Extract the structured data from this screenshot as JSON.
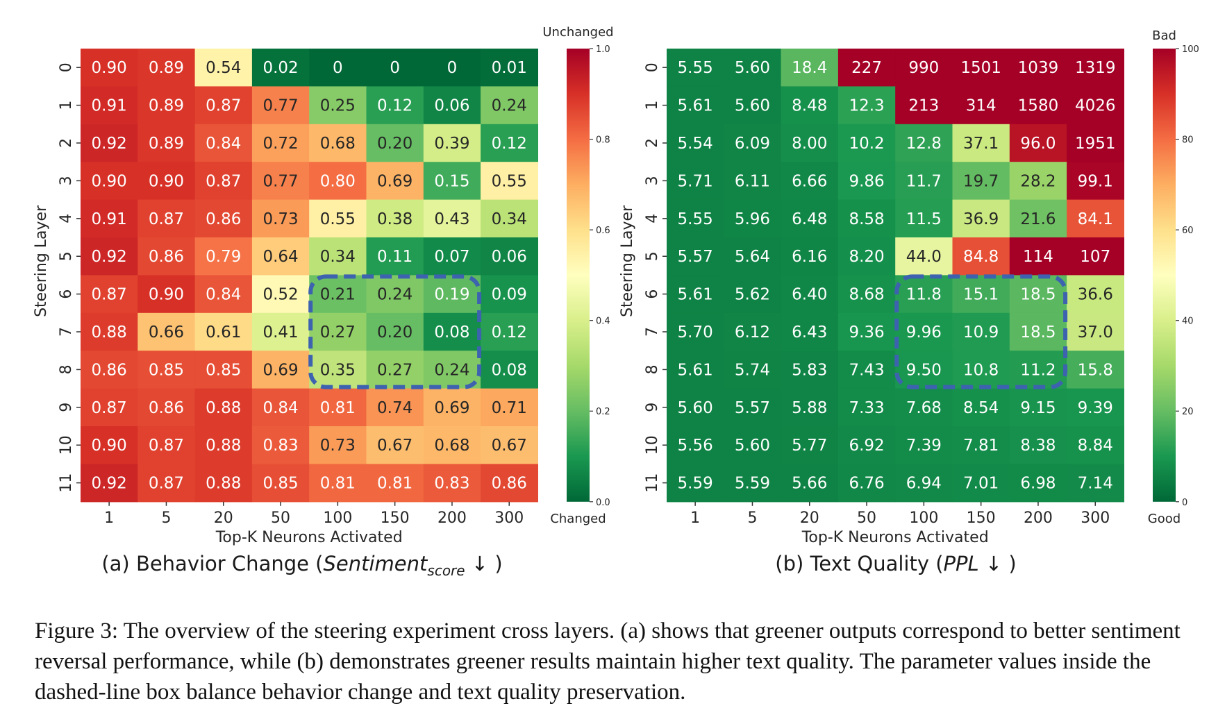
{
  "chart_data": [
    {
      "type": "heatmap",
      "panel_label": "(a) Behavior Change (",
      "metric_main": "Sentiment",
      "metric_sub": "score",
      "arrow": "↓",
      "close_paren": " )",
      "xlabel": "Top-K Neurons Activated",
      "ylabel": "Steering Layer",
      "x_categories": [
        "1",
        "5",
        "20",
        "50",
        "100",
        "150",
        "200",
        "300"
      ],
      "y_categories": [
        "0",
        "1",
        "2",
        "3",
        "4",
        "5",
        "6",
        "7",
        "8",
        "9",
        "10",
        "11"
      ],
      "values": [
        [
          "0.90",
          "0.89",
          "0.54",
          "0.02",
          "0",
          "0",
          "0",
          "0.01"
        ],
        [
          "0.91",
          "0.89",
          "0.87",
          "0.77",
          "0.25",
          "0.12",
          "0.06",
          "0.24"
        ],
        [
          "0.92",
          "0.89",
          "0.84",
          "0.72",
          "0.68",
          "0.20",
          "0.39",
          "0.12"
        ],
        [
          "0.90",
          "0.90",
          "0.87",
          "0.77",
          "0.80",
          "0.69",
          "0.15",
          "0.55"
        ],
        [
          "0.91",
          "0.87",
          "0.86",
          "0.73",
          "0.55",
          "0.38",
          "0.43",
          "0.34"
        ],
        [
          "0.92",
          "0.86",
          "0.79",
          "0.64",
          "0.34",
          "0.11",
          "0.07",
          "0.06"
        ],
        [
          "0.87",
          "0.90",
          "0.84",
          "0.52",
          "0.21",
          "0.24",
          "0.19",
          "0.09"
        ],
        [
          "0.88",
          "0.66",
          "0.61",
          "0.41",
          "0.27",
          "0.20",
          "0.08",
          "0.12"
        ],
        [
          "0.86",
          "0.85",
          "0.85",
          "0.69",
          "0.35",
          "0.27",
          "0.24",
          "0.08"
        ],
        [
          "0.87",
          "0.86",
          "0.88",
          "0.84",
          "0.81",
          "0.74",
          "0.69",
          "0.71"
        ],
        [
          "0.90",
          "0.87",
          "0.88",
          "0.83",
          "0.73",
          "0.67",
          "0.68",
          "0.67"
        ],
        [
          "0.92",
          "0.87",
          "0.88",
          "0.85",
          "0.81",
          "0.81",
          "0.83",
          "0.86"
        ]
      ],
      "color_range": [
        0,
        1.0
      ],
      "colorbar_ticks": [
        "0.0",
        "0.2",
        "0.4",
        "0.6",
        "0.8",
        "1.0"
      ],
      "colorbar_top_label": "Unchanged",
      "colorbar_bottom_label": "Changed",
      "highlight_box": {
        "rows": [
          "6",
          "8"
        ],
        "cols": [
          "100",
          "200"
        ]
      }
    },
    {
      "type": "heatmap",
      "panel_label": "(b) Text Quality (",
      "metric_main": "PPL",
      "metric_sub": "",
      "arrow": "↓",
      "close_paren": " )",
      "xlabel": "Top-K Neurons Activated",
      "ylabel": "Steering Layer",
      "x_categories": [
        "1",
        "5",
        "20",
        "50",
        "100",
        "150",
        "200",
        "300"
      ],
      "y_categories": [
        "0",
        "1",
        "2",
        "3",
        "4",
        "5",
        "6",
        "7",
        "8",
        "9",
        "10",
        "11"
      ],
      "values": [
        [
          "5.55",
          "5.60",
          "18.4",
          "227",
          "990",
          "1501",
          "1039",
          "1319"
        ],
        [
          "5.61",
          "5.60",
          "8.48",
          "12.3",
          "213",
          "314",
          "1580",
          "4026"
        ],
        [
          "5.54",
          "6.09",
          "8.00",
          "10.2",
          "12.8",
          "37.1",
          "96.0",
          "1951"
        ],
        [
          "5.71",
          "6.11",
          "6.66",
          "9.86",
          "11.7",
          "19.7",
          "28.2",
          "99.1"
        ],
        [
          "5.55",
          "5.96",
          "6.48",
          "8.58",
          "11.5",
          "36.9",
          "21.6",
          "84.1"
        ],
        [
          "5.57",
          "5.64",
          "6.16",
          "8.20",
          "44.0",
          "84.8",
          "114",
          "107"
        ],
        [
          "5.61",
          "5.62",
          "6.40",
          "8.68",
          "11.8",
          "15.1",
          "18.5",
          "36.6"
        ],
        [
          "5.70",
          "6.12",
          "6.43",
          "9.36",
          "9.96",
          "10.9",
          "18.5",
          "37.0"
        ],
        [
          "5.61",
          "5.74",
          "5.83",
          "7.43",
          "9.50",
          "10.8",
          "11.2",
          "15.8"
        ],
        [
          "5.60",
          "5.57",
          "5.88",
          "7.33",
          "7.68",
          "8.54",
          "9.15",
          "9.39"
        ],
        [
          "5.56",
          "5.60",
          "5.77",
          "6.92",
          "7.39",
          "7.81",
          "8.38",
          "8.84"
        ],
        [
          "5.59",
          "5.59",
          "5.66",
          "6.76",
          "6.94",
          "7.01",
          "6.98",
          "7.14"
        ]
      ],
      "color_range": [
        0,
        100
      ],
      "colorbar_ticks": [
        "0",
        "20",
        "40",
        "60",
        "80",
        "100"
      ],
      "colorbar_top_label": "Bad",
      "colorbar_bottom_label": "Good",
      "highlight_box": {
        "rows": [
          "6",
          "8"
        ],
        "cols": [
          "100",
          "200"
        ]
      }
    }
  ],
  "caption": "Figure 3: The overview of the steering experiment cross layers. (a) shows that greener outputs correspond to better sentiment reversal performance, while (b) demonstrates greener results maintain higher text quality. The parameter values inside the dashed-line box balance behavior change and text quality preservation.",
  "colors": {
    "colormap_stops": [
      "#006837",
      "#1a9850",
      "#66bd63",
      "#a6d96a",
      "#d9ef8b",
      "#ffffbf",
      "#fee08b",
      "#fdae61",
      "#f46d43",
      "#d73027",
      "#a50026"
    ],
    "highlight_box": "#3d62b0"
  }
}
